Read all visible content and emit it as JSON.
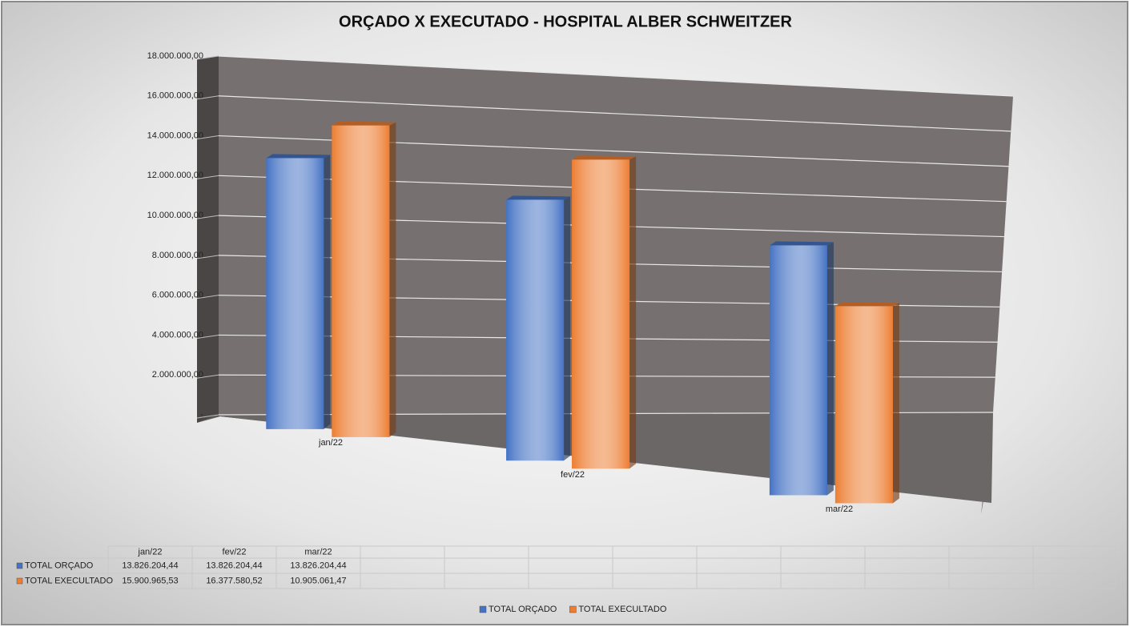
{
  "chart_data": {
    "type": "bar3d",
    "title": "ORÇADO X EXECUTADO - HOSPITAL ALBER SCHWEITZER",
    "categories": [
      "jan/22",
      "fev/22",
      "mar/22"
    ],
    "series": [
      {
        "name": "TOTAL ORÇADO",
        "color": "#4472c4",
        "values": [
          13826204.44,
          13826204.44,
          13826204.44
        ],
        "value_labels": [
          "13.826.204,44",
          "13.826.204,44",
          "13.826.204,44"
        ]
      },
      {
        "name": "TOTAL EXECULTADO",
        "color": "#ed7d31",
        "values": [
          15900965.53,
          16377580.52,
          10905061.47
        ],
        "value_labels": [
          "15.900.965,53",
          "16.377.580,52",
          "10.905.061,47"
        ]
      }
    ],
    "ylim": [
      0,
      18000000
    ],
    "yticks": [
      {
        "value": 0,
        "label": "-"
      },
      {
        "value": 2000000,
        "label": "2.000.000,00"
      },
      {
        "value": 4000000,
        "label": "4.000.000,00"
      },
      {
        "value": 6000000,
        "label": "6.000.000,00"
      },
      {
        "value": 8000000,
        "label": "8.000.000,00"
      },
      {
        "value": 10000000,
        "label": "10.000.000,00"
      },
      {
        "value": 12000000,
        "label": "12.000.000,00"
      },
      {
        "value": 14000000,
        "label": "14.000.000,00"
      },
      {
        "value": 16000000,
        "label": "16.000.000,00"
      },
      {
        "value": 18000000,
        "label": "18.000.000,00"
      }
    ],
    "grid": true,
    "legend": "bottom",
    "data_table": true
  }
}
